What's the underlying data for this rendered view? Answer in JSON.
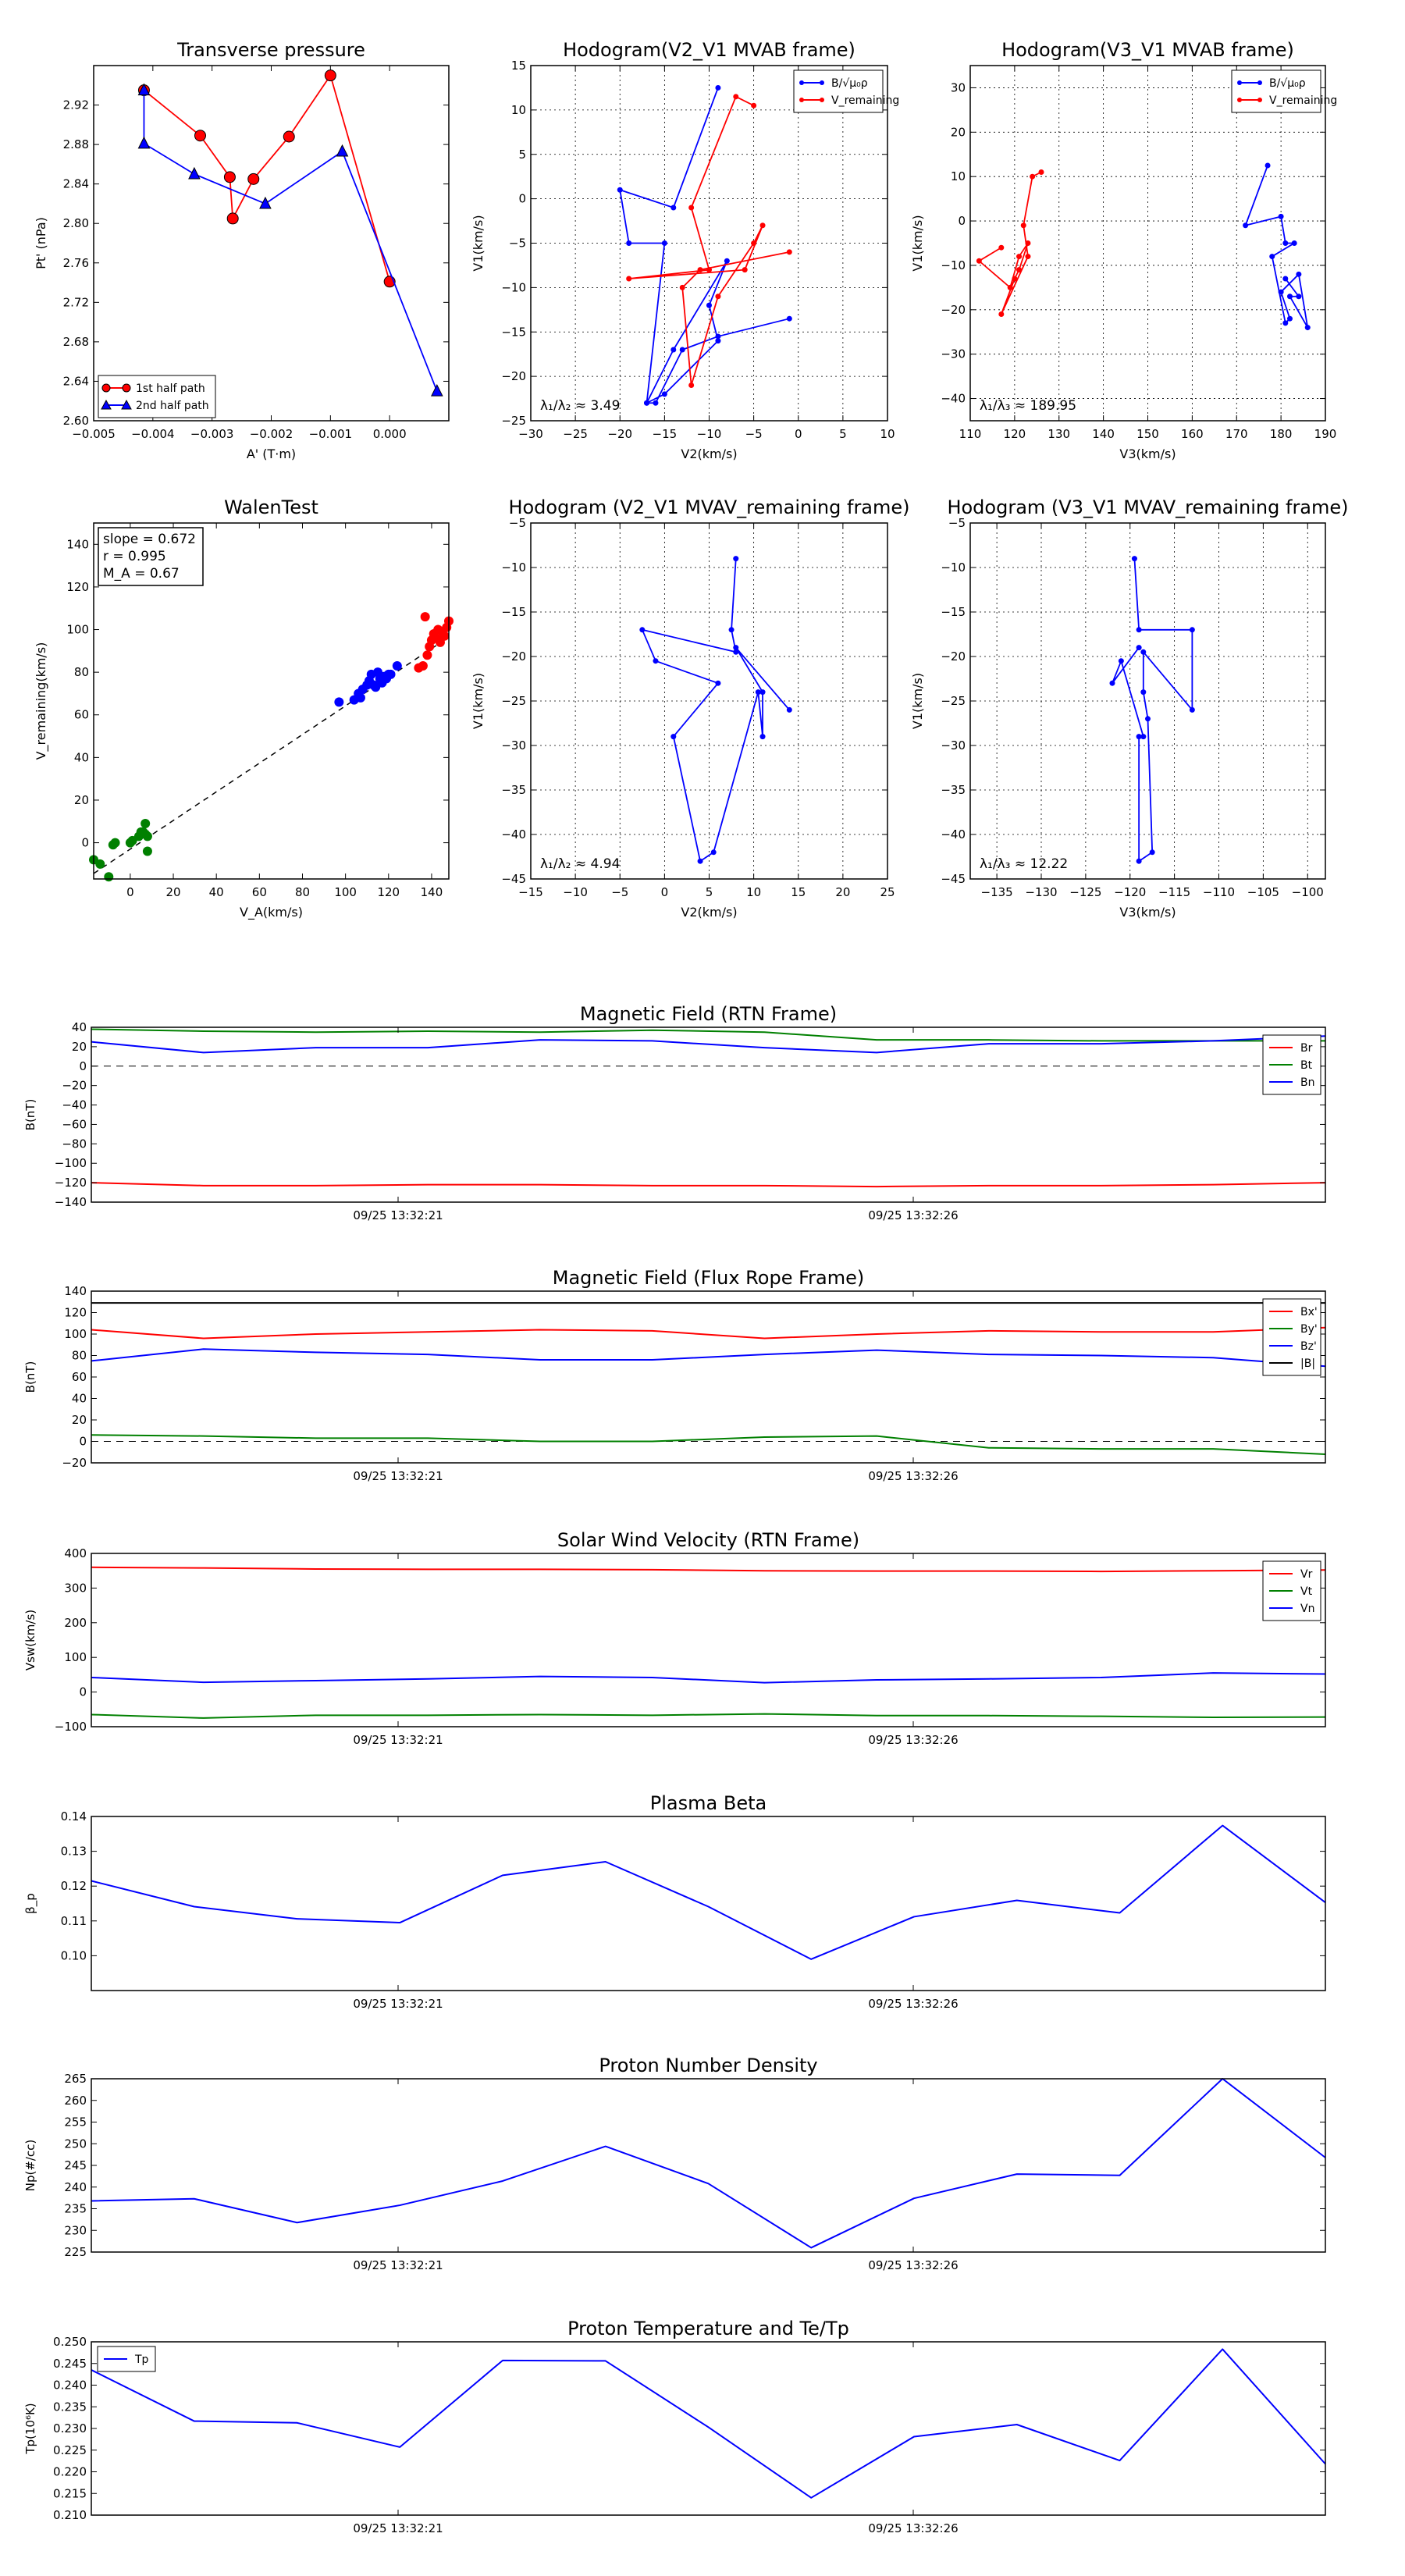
{
  "chart_data": [
    {
      "id": "transverse_pressure",
      "type": "scatter",
      "title": "Transverse pressure",
      "xlabel": "A' (T·m)",
      "ylabel": "Pt' (nPa)",
      "xlim": [
        -0.005,
        0.001
      ],
      "ylim": [
        2.6,
        2.96
      ],
      "xticks": [
        -0.005,
        -0.004,
        -0.003,
        -0.002,
        -0.001,
        0.0
      ],
      "xtick_labels": [
        "−0.005",
        "−0.004",
        "−0.003",
        "−0.002",
        "−0.001",
        "0.000"
      ],
      "yticks": [
        2.6,
        2.64,
        2.68,
        2.72,
        2.76,
        2.8,
        2.84,
        2.88,
        2.92
      ],
      "ytick_labels": [
        "2.60",
        "2.64",
        "2.68",
        "2.72",
        "2.76",
        "2.80",
        "2.84",
        "2.88",
        "2.92"
      ],
      "series": [
        {
          "name": "1st half path",
          "color": "#ff0000",
          "marker": "circle",
          "x": [
            -0.00415,
            -0.0032,
            -0.0027,
            -0.00265,
            -0.0023,
            -0.0017,
            -0.001,
            0.0
          ],
          "y": [
            2.935,
            2.889,
            2.847,
            2.805,
            2.845,
            2.888,
            2.95,
            2.741
          ]
        },
        {
          "name": "2nd half path",
          "color": "#0000ff",
          "marker": "triangle",
          "x": [
            -0.00415,
            -0.00415,
            -0.0033,
            -0.0021,
            -0.0008,
            0.0008
          ],
          "y": [
            2.935,
            2.881,
            2.85,
            2.82,
            2.873,
            2.63
          ]
        }
      ],
      "legend": "lower-left"
    },
    {
      "id": "hodogram_v2_v1_mvab",
      "type": "line",
      "title": "Hodogram(V2_V1 MVAB frame)",
      "xlabel": "V2(km/s)",
      "ylabel": "V1(km/s)",
      "xlim": [
        -30,
        10
      ],
      "ylim": [
        -25,
        15
      ],
      "xticks": [
        -30,
        -25,
        -20,
        -15,
        -10,
        -5,
        0,
        5,
        10
      ],
      "yticks": [
        -25,
        -20,
        -15,
        -10,
        -5,
        0,
        5,
        10,
        15
      ],
      "grid": true,
      "annotation": "λ₁/λ₂ ≈ 3.49",
      "legend_labels": [
        "B/√μ₀ρ",
        "V_remaining"
      ],
      "legend": "top-right",
      "series": [
        {
          "name": "B/√μ₀ρ",
          "color": "#0000ff",
          "x": [
            -9,
            -14,
            -20,
            -19,
            -15,
            -17,
            -15,
            -9,
            -10,
            -8,
            -14,
            -17,
            -16,
            -13,
            -9,
            -1
          ],
          "y": [
            12.5,
            -1,
            1,
            -5,
            -5,
            -23,
            -22,
            -16,
            -12,
            -7,
            -17,
            -23,
            -23,
            -17,
            -15.5,
            -13.5
          ]
        },
        {
          "name": "V_remaining",
          "color": "#ff0000",
          "x": [
            -5,
            -7,
            -12,
            -10,
            -19,
            -6,
            -4,
            -5,
            -9,
            -12,
            -13,
            -11,
            -1
          ],
          "y": [
            10.5,
            11.5,
            -1,
            -8,
            -9,
            -8,
            -3,
            -5,
            -11,
            -21,
            -10,
            -8,
            -6
          ]
        }
      ]
    },
    {
      "id": "hodogram_v3_v1_mvab",
      "type": "line",
      "title": "Hodogram(V3_V1 MVAB frame)",
      "xlabel": "V3(km/s)",
      "ylabel": "V1(km/s)",
      "xlim": [
        110,
        190
      ],
      "ylim": [
        -45,
        35
      ],
      "xticks": [
        110,
        120,
        130,
        140,
        150,
        160,
        170,
        180,
        190
      ],
      "yticks": [
        -40,
        -30,
        -20,
        -10,
        0,
        10,
        20,
        30
      ],
      "grid": true,
      "annotation": "λ₁/λ₃ ≈ 189.95",
      "legend_labels": [
        "B/√μ₀ρ",
        "V_remaining"
      ],
      "legend": "top-right",
      "series": [
        {
          "name": "B/√μ₀ρ",
          "color": "#0000ff",
          "x": [
            177,
            172,
            180,
            181,
            183,
            178,
            181,
            182,
            180,
            184,
            186,
            182,
            184,
            181
          ],
          "y": [
            12.5,
            -1,
            1,
            -5,
            -5,
            -8,
            -23,
            -22,
            -16,
            -12,
            -24,
            -17,
            -17,
            -13
          ]
        },
        {
          "name": "V_remaining",
          "color": "#ff0000",
          "x": [
            126,
            124,
            122,
            123,
            117,
            120,
            121,
            123,
            121,
            119,
            112,
            117
          ],
          "y": [
            11,
            10,
            -1,
            -8,
            -21,
            -13,
            -11,
            -5,
            -8,
            -15,
            -9,
            -6
          ]
        }
      ]
    },
    {
      "id": "walen_test",
      "type": "scatter",
      "title": "WalenTest",
      "xlabel": "V_A(km/s)",
      "ylabel": "V_remaining(km/s)",
      "xlim": [
        -17,
        148
      ],
      "ylim": [
        -17,
        150
      ],
      "xticks": [
        0,
        20,
        40,
        60,
        80,
        100,
        120,
        140
      ],
      "yticks": [
        0,
        20,
        40,
        60,
        80,
        100,
        120,
        140
      ],
      "fit_line": {
        "slope": 0.672,
        "intercept": -3,
        "style": "dashed"
      },
      "text_box": [
        "slope = 0.672",
        "r = 0.995",
        "M_A = 0.67"
      ],
      "series": [
        {
          "name": "green",
          "color": "#008000",
          "x": [
            -14,
            -10,
            -8,
            -7,
            0,
            1,
            4,
            5,
            7,
            7,
            8,
            8,
            6,
            -17
          ],
          "y": [
            -10,
            -16,
            -1,
            0,
            0,
            1,
            3,
            5,
            4,
            9,
            3,
            -4,
            5,
            -8
          ]
        },
        {
          "name": "blue",
          "color": "#0000ff",
          "x": [
            97,
            104,
            106,
            107,
            108,
            110,
            111,
            112,
            113,
            114,
            115,
            116,
            117,
            118,
            119,
            120,
            121,
            124
          ],
          "y": [
            66,
            67,
            70,
            68,
            72,
            74,
            76,
            79,
            74,
            73,
            80,
            77,
            75,
            78,
            77,
            79,
            79,
            83
          ]
        },
        {
          "name": "red",
          "color": "#ff0000",
          "x": [
            134,
            137,
            138,
            139,
            140,
            141,
            142,
            143,
            144,
            145,
            146,
            147,
            148,
            136
          ],
          "y": [
            82,
            106,
            88,
            92,
            95,
            98,
            96,
            100,
            94,
            99,
            97,
            101,
            104,
            83
          ]
        }
      ]
    },
    {
      "id": "hodogram_v2_v1_mvav",
      "type": "line",
      "title": "Hodogram (V2_V1 MVAV_remaining frame)",
      "xlabel": "V2(km/s)",
      "ylabel": "V1(km/s)",
      "xlim": [
        -15,
        25
      ],
      "ylim": [
        -45,
        -5
      ],
      "xticks": [
        -15,
        -10,
        -5,
        0,
        5,
        10,
        15,
        20,
        25
      ],
      "yticks": [
        -45,
        -40,
        -35,
        -30,
        -25,
        -20,
        -15,
        -10,
        -5
      ],
      "grid": true,
      "annotation": "λ₁/λ₂ ≈ 4.94",
      "series": [
        {
          "name": "B",
          "color": "#0000ff",
          "x": [
            8,
            7.5,
            8,
            -2.5,
            -1,
            6,
            1,
            4,
            5.5,
            10.5,
            11,
            11,
            8,
            14
          ],
          "y": [
            -9,
            -17,
            -19.5,
            -17,
            -20.5,
            -23,
            -29,
            -43,
            -42,
            -24,
            -29,
            -24,
            -19,
            -26
          ]
        }
      ]
    },
    {
      "id": "hodogram_v3_v1_mvav",
      "type": "line",
      "title": "Hodogram (V3_V1 MVAV_remaining frame)",
      "xlabel": "V3(km/s)",
      "ylabel": "V1(km/s)",
      "xlim": [
        -138,
        -98
      ],
      "ylim": [
        -45,
        -5
      ],
      "xticks": [
        -135,
        -130,
        -125,
        -120,
        -115,
        -110,
        -105,
        -100
      ],
      "yticks": [
        -45,
        -40,
        -35,
        -30,
        -25,
        -20,
        -15,
        -10,
        -5
      ],
      "grid": true,
      "annotation": "λ₁/λ₃ ≈ 12.22",
      "series": [
        {
          "name": "B",
          "color": "#0000ff",
          "x": [
            -119.5,
            -119,
            -113,
            -113,
            -118.5,
            -118.5,
            -118,
            -117.5,
            -119,
            -119,
            -118.5,
            -121,
            -122,
            -119
          ],
          "y": [
            -9,
            -17,
            -17,
            -26,
            -19.5,
            -24,
            -27,
            -42,
            -43,
            -29,
            -29,
            -20.5,
            -23,
            -19
          ]
        }
      ]
    },
    {
      "id": "magnetic_field_rtn",
      "type": "line",
      "title": "Magnetic Field (RTN Frame)",
      "ylabel": "B(nT)",
      "ylim": [
        -140,
        40
      ],
      "yticks": [
        -140,
        -120,
        -100,
        -80,
        -60,
        -40,
        -20,
        0,
        20,
        40
      ],
      "xtick_labels": [
        "09/25 13:32:21",
        "09/25 13:32:26"
      ],
      "zero_line": true,
      "legend": "top-right",
      "series": [
        {
          "name": "Br",
          "color": "#ff0000",
          "values": [
            -120,
            -123,
            -123,
            -122,
            -122,
            -123,
            -123,
            -124,
            -123,
            -123,
            -122,
            -120
          ]
        },
        {
          "name": "Bt",
          "color": "#008000",
          "values": [
            38,
            36,
            35,
            36,
            35,
            37,
            35,
            27,
            27,
            26,
            26,
            26
          ]
        },
        {
          "name": "Bn",
          "color": "#0000ff",
          "values": [
            25,
            14,
            19,
            19,
            27,
            26,
            19,
            14,
            23,
            23,
            26,
            31
          ]
        }
      ]
    },
    {
      "id": "magnetic_field_flux_rope",
      "type": "line",
      "title": "Magnetic Field (Flux Rope Frame)",
      "ylabel": "B(nT)",
      "ylim": [
        -20,
        140
      ],
      "yticks": [
        -20,
        0,
        20,
        40,
        60,
        80,
        100,
        120,
        140
      ],
      "xtick_labels": [
        "09/25 13:32:21",
        "09/25 13:32:26"
      ],
      "zero_line": true,
      "legend": "top-right",
      "series": [
        {
          "name": "Bx'",
          "color": "#ff0000",
          "values": [
            104,
            96,
            100,
            102,
            104,
            103,
            96,
            100,
            103,
            102,
            102,
            106
          ]
        },
        {
          "name": "By'",
          "color": "#008000",
          "values": [
            6,
            5,
            3,
            3,
            0,
            0,
            4,
            5,
            -6,
            -7,
            -7,
            -12
          ]
        },
        {
          "name": "Bz'",
          "color": "#0000ff",
          "values": [
            75,
            86,
            83,
            81,
            76,
            76,
            81,
            85,
            81,
            80,
            78,
            70
          ]
        },
        {
          "name": "|B|",
          "color": "#000000",
          "values": [
            129,
            129,
            129,
            129,
            129,
            129,
            129,
            129,
            129,
            129,
            129,
            129
          ]
        }
      ]
    },
    {
      "id": "solar_wind_velocity",
      "type": "line",
      "title": "Solar Wind Velocity (RTN Frame)",
      "ylabel": "Vsw(km/s)",
      "ylim": [
        -100,
        400
      ],
      "yticks": [
        -100,
        0,
        100,
        200,
        300,
        400
      ],
      "xtick_labels": [
        "09/25 13:32:21",
        "09/25 13:32:26"
      ],
      "legend": "top-right",
      "series": [
        {
          "name": "Vr",
          "color": "#ff0000",
          "values": [
            360,
            358,
            355,
            354,
            354,
            353,
            350,
            349,
            349,
            348,
            350,
            352
          ]
        },
        {
          "name": "Vt",
          "color": "#008000",
          "values": [
            -65,
            -75,
            -67,
            -67,
            -65,
            -67,
            -63,
            -68,
            -68,
            -70,
            -73,
            -72
          ]
        },
        {
          "name": "Vn",
          "color": "#0000ff",
          "values": [
            42,
            28,
            33,
            38,
            45,
            42,
            27,
            35,
            38,
            42,
            55,
            52
          ]
        }
      ]
    },
    {
      "id": "plasma_beta",
      "type": "line",
      "title": "Plasma Beta",
      "ylabel": "β_p",
      "ylim": [
        0.09,
        0.14
      ],
      "yticks": [
        0.1,
        0.11,
        0.12,
        0.13,
        0.14
      ],
      "ytick_labels": [
        "0.10",
        "0.11",
        "0.12",
        "0.13",
        "0.14"
      ],
      "xtick_labels": [
        "09/25 13:32:21",
        "09/25 13:32:26"
      ],
      "series": [
        {
          "name": "beta",
          "color": "#0000ff",
          "values": [
            0.1215,
            0.1141,
            0.1106,
            0.1095,
            0.1231,
            0.127,
            0.1141,
            0.099,
            0.1112,
            0.1159,
            0.1123,
            0.1374,
            0.1153
          ]
        }
      ]
    },
    {
      "id": "proton_number_density",
      "type": "line",
      "title": "Proton Number Density",
      "ylabel": "Np(#/cc)",
      "ylim": [
        225,
        265
      ],
      "yticks": [
        225,
        230,
        235,
        240,
        245,
        250,
        255,
        260,
        265
      ],
      "xtick_labels": [
        "09/25 13:32:21",
        "09/25 13:32:26"
      ],
      "series": [
        {
          "name": "Np",
          "color": "#0000ff",
          "values": [
            236.8,
            237.3,
            231.8,
            235.8,
            241.4,
            249.4,
            240.8,
            226.0,
            237.4,
            243.0,
            242.7,
            265.0,
            246.8
          ]
        }
      ]
    },
    {
      "id": "proton_temperature",
      "type": "line",
      "title": "Proton Temperature and Te/Tp",
      "ylabel": "Tp(10⁶K)",
      "ylim": [
        0.21,
        0.25
      ],
      "yticks": [
        0.21,
        0.215,
        0.22,
        0.225,
        0.23,
        0.235,
        0.24,
        0.245,
        0.25
      ],
      "ytick_labels": [
        "0.210",
        "0.215",
        "0.220",
        "0.225",
        "0.230",
        "0.235",
        "0.240",
        "0.245",
        "0.250"
      ],
      "xtick_labels": [
        "09/25 13:32:21",
        "09/25 13:32:26"
      ],
      "legend": "top-left",
      "series": [
        {
          "name": "Tp",
          "color": "#0000ff",
          "values": [
            0.2435,
            0.2317,
            0.2313,
            0.2257,
            0.2457,
            0.2456,
            0.2303,
            0.214,
            0.2281,
            0.2309,
            0.2226,
            0.2483,
            0.2218
          ]
        }
      ]
    }
  ]
}
